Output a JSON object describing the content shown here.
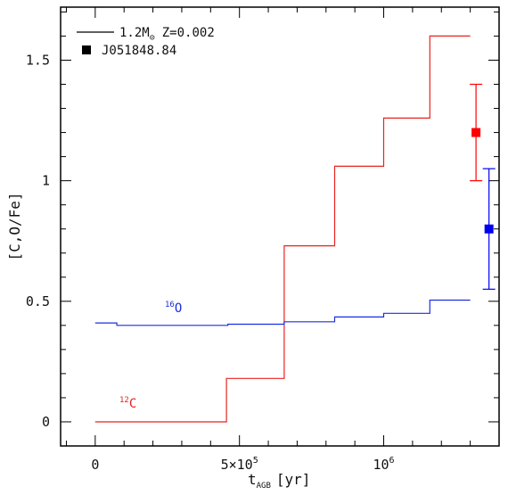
{
  "chart_data": {
    "type": "line",
    "title": "",
    "xlabel": {
      "main": "t",
      "sub": "AGB",
      "unit": "[yr]"
    },
    "ylabel": "[C,O/Fe]",
    "xlim": [
      -120000,
      1400000
    ],
    "ylim": [
      -0.1,
      1.72
    ],
    "x_ticks": [
      {
        "value": 0,
        "label": "0"
      },
      {
        "value": 500000,
        "label": "5×10",
        "exp": "5"
      },
      {
        "value": 1000000,
        "label": "10",
        "exp": "6"
      }
    ],
    "y_ticks": [
      {
        "value": 0,
        "label": "0"
      },
      {
        "value": 0.5,
        "label": "0.5"
      },
      {
        "value": 1,
        "label": "1"
      },
      {
        "value": 1.5,
        "label": "1.5"
      }
    ],
    "legend": {
      "placement": "top-left",
      "model_label": "1.2M",
      "model_sub": "⊙",
      "model_z": "Z=0.002",
      "observation_label": "J051848.84"
    },
    "series": [
      {
        "name": "12C",
        "label_sup": "12",
        "label_main": "C",
        "color": "#e8231f",
        "x": [
          0,
          455000,
          455000,
          655000,
          655000,
          830000,
          830000,
          1000000,
          1000000,
          1160000,
          1160000,
          1300000
        ],
        "y": [
          0.0,
          0.0,
          0.18,
          0.18,
          0.73,
          0.73,
          1.06,
          1.06,
          1.26,
          1.26,
          1.6,
          1.6
        ]
      },
      {
        "name": "16O",
        "label_sup": "16",
        "label_main": "O",
        "color": "#1a2ee0",
        "x": [
          0,
          75000,
          75000,
          460000,
          460000,
          655000,
          655000,
          830000,
          830000,
          1000000,
          1000000,
          1160000,
          1160000,
          1300000
        ],
        "y": [
          0.41,
          0.41,
          0.4,
          0.4,
          0.405,
          0.405,
          0.415,
          0.415,
          0.435,
          0.435,
          0.45,
          0.45,
          0.505,
          0.505
        ]
      }
    ],
    "observations": [
      {
        "element": "C",
        "x": 1320000,
        "y": 1.2,
        "y_err": [
          1.0,
          1.4
        ],
        "color": "#ff0000"
      },
      {
        "element": "O",
        "x": 1365000,
        "y": 0.8,
        "y_err": [
          0.55,
          1.05
        ],
        "color": "#0000ee"
      }
    ]
  }
}
